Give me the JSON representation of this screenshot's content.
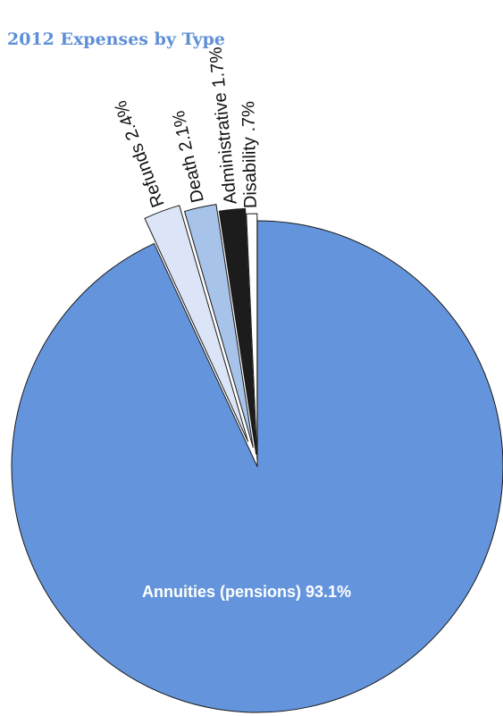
{
  "chart_data": {
    "type": "pie",
    "title": "2012 Expenses by Type",
    "slices": [
      {
        "label": "Annuities (pensions) 93.1%",
        "value": 93.1,
        "color": "#6495dc",
        "exploded": false
      },
      {
        "label": "Refunds 2.4%",
        "value": 2.4,
        "color": "#dbe5f7",
        "exploded": true
      },
      {
        "label": "Death 2.1%",
        "value": 2.1,
        "color": "#a7c3ea",
        "exploded": true
      },
      {
        "label": "Administrative 1.7%",
        "value": 1.7,
        "color": "#1c1c1c",
        "exploded": true
      },
      {
        "label": "Disability .7%",
        "value": 0.7,
        "color": "#ffffff",
        "exploded": true
      }
    ]
  }
}
